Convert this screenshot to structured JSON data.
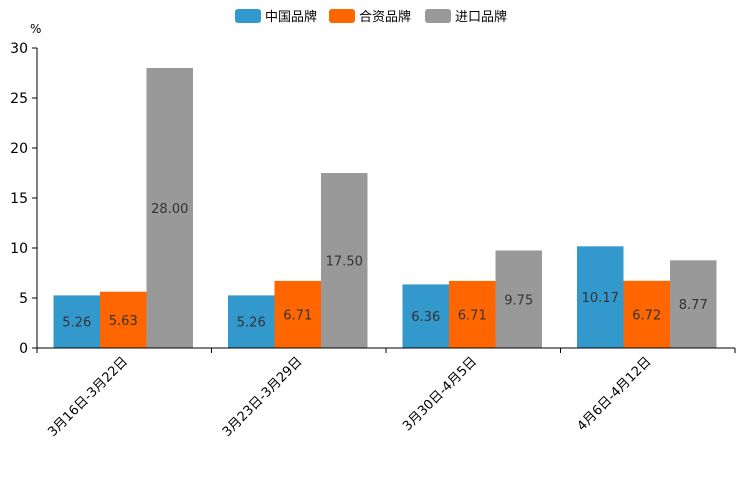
{
  "chart_data": {
    "type": "bar",
    "ylabel": "%",
    "ylim": [
      0,
      30
    ],
    "yticks": [
      0,
      5,
      10,
      15,
      20,
      25,
      30
    ],
    "categories": [
      "3月16日-3月22日",
      "3月23日-3月29日",
      "3月30日-4月5日",
      "4月6日-4月12日"
    ],
    "series": [
      {
        "name": "中国品牌",
        "color": "#3399cc",
        "values": [
          5.26,
          5.26,
          6.36,
          10.17
        ],
        "labels": [
          "5.26",
          "5.26",
          "6.36",
          "10.17"
        ]
      },
      {
        "name": "合资品牌",
        "color": "#ff6600",
        "values": [
          5.63,
          6.71,
          6.71,
          6.72
        ],
        "labels": [
          "5.63",
          "6.71",
          "6.71",
          "6.72"
        ]
      },
      {
        "name": "进口品牌",
        "color": "#999999",
        "values": [
          28.0,
          17.5,
          9.75,
          8.77
        ],
        "labels": [
          "28.00",
          "17.50",
          "9.75",
          "8.77"
        ]
      }
    ],
    "legend": "top-center",
    "grid": false
  }
}
